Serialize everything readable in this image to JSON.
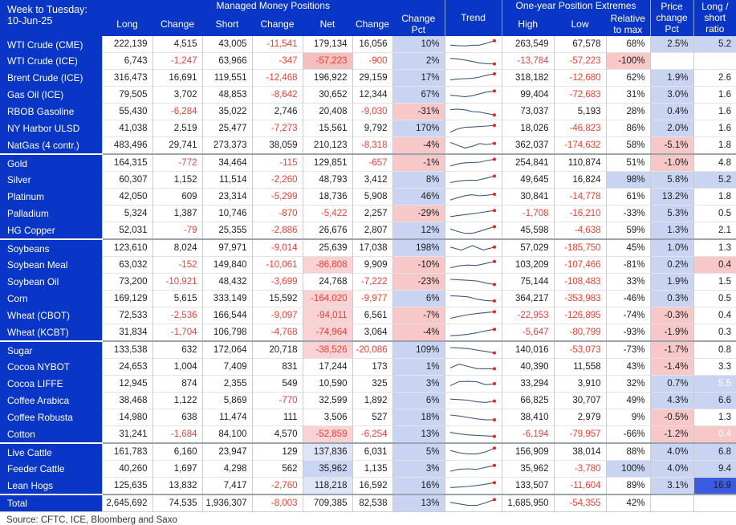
{
  "header": {
    "week_label": "Week to Tuesday:",
    "week_date": "10-Jun-25",
    "group_managed": "Managed Money Positions",
    "group_extremes": "One-year Position Extremes",
    "col_long": "Long",
    "col_change_1": "Change",
    "col_short": "Short",
    "col_change_2": "Change",
    "col_net": "Net",
    "col_change_3": "Change",
    "col_change_pct": "Change Pct",
    "col_trend": "Trend",
    "col_high": "High",
    "col_low": "Low",
    "col_relative_to_max": "Relative to max",
    "col_price_change_pct": "Price change Pct",
    "col_long_short_ratio": "Long / short ratio"
  },
  "source": "Source: CFTC, ICE, Bloomberg and Saxo",
  "colors": {
    "hdr": "#0a36c8",
    "cellBlue": "#c9d4f2",
    "cellPink": "#f8c7c7",
    "netPinkStrong": "#f5bfbf",
    "netPink": "#f9d3d3",
    "netBlue": "#dde5f7",
    "netBlueMid": "#c9d5f3",
    "ratioBlueStrong": "#3b5ce0",
    "red": "#e93f33",
    "dark": "#1d1d1f",
    "white": "#ffffff",
    "spark": "#3d5c80",
    "dot": "#e8231f"
  },
  "chart_data": {
    "type": "table",
    "columns": [
      "Long",
      "Change",
      "Short",
      "Change",
      "Net",
      "Change",
      "Change Pct",
      "Trend",
      "High",
      "Low",
      "Relative to max",
      "Price change Pct",
      "Long / short ratio"
    ],
    "cell_names": [
      "cell-long",
      "cell-long-change",
      "cell-short",
      "cell-short-change",
      "cell-net",
      "cell-net-change",
      "cell-change-pct",
      "cell-high",
      "cell-low",
      "cell-relative-to-max",
      "cell-price-change-pct",
      "cell-long-short-ratio"
    ],
    "rows": [
      {
        "label": "WTI Crude (CME)",
        "group": false,
        "trend": [
          0.6,
          0.66,
          0.68,
          0.62,
          0.6,
          0.38,
          0.15
        ],
        "cells": [
          "222,139",
          "4,515",
          "43,005",
          "-11,541",
          "179,134",
          "16,056",
          {
            "v": "10%",
            "bg": "cellBlue"
          },
          "263,549",
          "67,578",
          "68%",
          {
            "v": "2.5%",
            "bg": "cellBlue"
          },
          {
            "v": "5.2",
            "bg": "cellBlue"
          }
        ]
      },
      {
        "label": "WTI Crude (ICE)",
        "group": false,
        "trend": [
          0.22,
          0.28,
          0.4,
          0.55,
          0.7,
          0.78,
          0.8
        ],
        "cells": [
          "6,743",
          "-1,247",
          "63,966",
          "-347",
          {
            "v": "-57,223",
            "bg": "netPinkStrong"
          },
          "-900",
          {
            "v": "2%",
            "bg": "cellBlue"
          },
          "-13,784",
          "-57,223",
          {
            "v": "-100%",
            "bg": "cellPink",
            "fg": "d"
          },
          "",
          ""
        ]
      },
      {
        "label": "Brent Crude (ICE)",
        "group": false,
        "trend": [
          0.7,
          0.62,
          0.58,
          0.55,
          0.42,
          0.22,
          0.08
        ],
        "cells": [
          "316,473",
          "16,691",
          "119,551",
          "-12,468",
          "196,922",
          "29,159",
          {
            "v": "17%",
            "bg": "cellBlue"
          },
          "318,182",
          "-12,680",
          "62%",
          {
            "v": "1.9%",
            "bg": "cellBlue"
          },
          "2.6"
        ]
      },
      {
        "label": "Gas Oil (ICE)",
        "group": false,
        "trend": [
          0.55,
          0.62,
          0.72,
          0.6,
          0.4,
          0.22,
          0.12
        ],
        "cells": [
          "79,505",
          "3,702",
          "48,853",
          "-8,642",
          "30,652",
          "12,344",
          {
            "v": "67%",
            "bg": "cellBlue"
          },
          "99,404",
          "-72,683",
          "31%",
          {
            "v": "3.0%",
            "bg": "cellBlue"
          },
          "1.6"
        ]
      },
      {
        "label": "RBOB Gasoline",
        "group": false,
        "trend": [
          0.3,
          0.24,
          0.32,
          0.5,
          0.55,
          0.7,
          0.85
        ],
        "cells": [
          "55,430",
          "-6,284",
          "35,022",
          "2,746",
          "20,408",
          "-9,030",
          {
            "v": "-31%",
            "bg": "cellPink",
            "fg": "d"
          },
          "73,037",
          "5,193",
          "28%",
          {
            "v": "0.4%",
            "bg": "cellBlue"
          },
          "1.6"
        ]
      },
      {
        "label": "NY Harbor ULSD",
        "group": false,
        "trend": [
          0.88,
          0.55,
          0.38,
          0.35,
          0.3,
          0.25,
          0.18
        ],
        "cells": [
          "41,038",
          "2,519",
          "25,477",
          "-7,273",
          "15,561",
          "9,792",
          {
            "v": "170%",
            "bg": "cellBlue"
          },
          "18,026",
          "-46,823",
          "86%",
          {
            "v": "2.0%",
            "bg": "cellBlue"
          },
          "1.6"
        ]
      },
      {
        "label": "NatGas (4 contr.)",
        "group": false,
        "trend": [
          0.2,
          0.5,
          0.78,
          0.6,
          0.32,
          0.42,
          0.3
        ],
        "cells": [
          "483,496",
          "29,741",
          "273,373",
          "38,059",
          "210,123",
          "-8,318",
          {
            "v": "-4%",
            "bg": "cellPink",
            "fg": "d"
          },
          "362,037",
          "-174,632",
          "58%",
          {
            "v": "-5.1%",
            "bg": "cellPink",
            "fg": "d"
          },
          "1.8"
        ]
      },
      {
        "label": "Gold",
        "group": true,
        "trend": [
          0.82,
          0.6,
          0.48,
          0.45,
          0.42,
          0.25,
          0.12
        ],
        "cells": [
          "164,315",
          "-772",
          "34,464",
          "-115",
          "129,851",
          "-657",
          {
            "v": "-1%",
            "bg": "cellPink",
            "fg": "d"
          },
          "254,841",
          "110,874",
          "51%",
          {
            "v": "-1.0%",
            "bg": "cellPink",
            "fg": "d"
          },
          "4.8"
        ]
      },
      {
        "label": "Silver",
        "group": false,
        "trend": [
          0.78,
          0.62,
          0.55,
          0.55,
          0.35,
          0.12
        ],
        "cells": [
          "60,307",
          "1,152",
          "11,514",
          "-2,260",
          "48,793",
          "3,412",
          {
            "v": "8%",
            "bg": "cellBlue"
          },
          "49,645",
          "16,824",
          {
            "v": "98%",
            "bg": "cellBlue"
          },
          {
            "v": "5.8%",
            "bg": "cellBlue"
          },
          {
            "v": "5.2",
            "bg": "cellBlue"
          }
        ]
      },
      {
        "label": "Platinum",
        "group": false,
        "trend": [
          0.85,
          0.6,
          0.4,
          0.3,
          0.42,
          0.35,
          0.25
        ],
        "cells": [
          "42,050",
          "609",
          "23,314",
          "-5,299",
          "18,736",
          "5,908",
          {
            "v": "46%",
            "bg": "cellBlue"
          },
          "30,841",
          "-14,778",
          "61%",
          {
            "v": "13.2%",
            "bg": "cellBlue"
          },
          "1.8"
        ]
      },
      {
        "label": "Palladium",
        "group": false,
        "trend": [
          0.82,
          0.72,
          0.62,
          0.52,
          0.42,
          0.3,
          0.18
        ],
        "cells": [
          "5,324",
          "1,387",
          "10,746",
          "-870",
          "-5,422",
          "2,257",
          {
            "v": "-29%",
            "bg": "cellPink",
            "fg": "d"
          },
          "-1,708",
          "-16,210",
          {
            "v": "-33%",
            "fg": "d"
          },
          {
            "v": "5.3%",
            "bg": "cellBlue"
          },
          "0.5"
        ]
      },
      {
        "label": "HG Copper",
        "group": false,
        "trend": [
          0.35,
          0.62,
          0.8,
          0.8,
          0.6,
          0.35,
          0.12
        ],
        "cells": [
          "52,031",
          "-79",
          "25,355",
          "-2,886",
          "26,676",
          "2,807",
          {
            "v": "12%",
            "bg": "cellBlue"
          },
          "45,598",
          "-4,638",
          "59%",
          {
            "v": "1.3%",
            "bg": "cellBlue"
          },
          "2.1"
        ]
      },
      {
        "label": "Soybeans",
        "group": true,
        "trend": [
          0.4,
          0.72,
          0.25,
          0.7,
          0.4
        ],
        "cells": [
          "123,610",
          "8,024",
          "97,971",
          "-9,014",
          "25,639",
          "17,038",
          {
            "v": "198%",
            "bg": "cellBlue"
          },
          "57,029",
          "-185,750",
          "45%",
          {
            "v": "1.0%",
            "bg": "cellBlue"
          },
          "1.3"
        ]
      },
      {
        "label": "Soybean Meal",
        "group": false,
        "trend": [
          0.8,
          0.6,
          0.52,
          0.56,
          0.35,
          0.15
        ],
        "cells": [
          "63,032",
          "-152",
          "149,840",
          "-10,061",
          {
            "v": "-86,808",
            "bg": "netPink"
          },
          "9,909",
          {
            "v": "-10%",
            "bg": "cellPink",
            "fg": "d"
          },
          "103,209",
          "-107,466",
          {
            "v": "-81%",
            "fg": "d"
          },
          {
            "v": "0.2%",
            "bg": "cellBlue"
          },
          {
            "v": "0.4",
            "bg": "cellPink",
            "fg": "d"
          }
        ]
      },
      {
        "label": "Soybean Oil",
        "group": false,
        "trend": [
          0.25,
          0.3,
          0.35,
          0.42,
          0.62,
          0.78
        ],
        "cells": [
          "73,200",
          "-10,921",
          "48,432",
          "-3,699",
          "24,768",
          "-7,222",
          {
            "v": "-23%",
            "bg": "cellPink",
            "fg": "d"
          },
          "75,144",
          "-108,483",
          "33%",
          {
            "v": "1.9%",
            "bg": "cellBlue"
          },
          "1.5"
        ]
      },
      {
        "label": "Corn",
        "group": false,
        "trend": [
          0.2,
          0.24,
          0.32,
          0.55,
          0.7,
          0.74
        ],
        "cells": [
          "169,129",
          "5,615",
          "333,149",
          "15,592",
          {
            "v": "-164,020",
            "bg": "netPink"
          },
          "-9,977",
          {
            "v": "6%",
            "bg": "cellBlue"
          },
          "364,217",
          "-353,983",
          {
            "v": "-46%",
            "fg": "d"
          },
          {
            "v": "0.3%",
            "bg": "cellBlue"
          },
          "0.5"
        ]
      },
      {
        "label": "Wheat (CBOT)",
        "group": false,
        "trend": [
          0.8,
          0.6,
          0.42,
          0.3,
          0.2,
          0.12
        ],
        "cells": [
          "72,533",
          "-2,536",
          "166,544",
          "-9,097",
          {
            "v": "-94,011",
            "bg": "netPink"
          },
          "6,561",
          {
            "v": "-7%",
            "bg": "cellPink",
            "fg": "d"
          },
          "-22,953",
          "-126,895",
          {
            "v": "-74%",
            "fg": "d"
          },
          {
            "v": "-0.3%",
            "bg": "cellPink",
            "fg": "d"
          },
          "0.4"
        ]
      },
      {
        "label": "Wheat (KCBT)",
        "group": false,
        "trend": [
          0.85,
          0.8,
          0.7,
          0.55,
          0.35,
          0.18
        ],
        "cells": [
          "31,834",
          "-1,704",
          "106,798",
          "-4,768",
          {
            "v": "-74,964",
            "bg": "netPink"
          },
          "3,064",
          {
            "v": "-4%",
            "bg": "cellPink",
            "fg": "d"
          },
          "-5,647",
          "-80,799",
          {
            "v": "-93%",
            "fg": "d"
          },
          {
            "v": "-1.9%",
            "bg": "cellPink",
            "fg": "d"
          },
          "0.3"
        ]
      },
      {
        "label": "Sugar",
        "group": true,
        "trend": [
          0.25,
          0.28,
          0.36,
          0.5,
          0.65,
          0.8
        ],
        "cells": [
          "133,538",
          "632",
          "172,064",
          "20,718",
          {
            "v": "-38,526",
            "bg": "netPink"
          },
          "-20,086",
          {
            "v": "109%",
            "bg": "cellBlue"
          },
          "140,016",
          "-53,073",
          {
            "v": "-73%",
            "fg": "d"
          },
          {
            "v": "-1.7%",
            "bg": "cellPink",
            "fg": "d"
          },
          "0.8"
        ]
      },
      {
        "label": "Cocoa NYBOT",
        "group": false,
        "trend": [
          0.6,
          0.22,
          0.45,
          0.68,
          0.7,
          0.7
        ],
        "cells": [
          "24,653",
          "1,004",
          "7,409",
          "831",
          "17,244",
          "173",
          {
            "v": "1%",
            "bg": "cellBlue"
          },
          "40,390",
          "11,558",
          "43%",
          {
            "v": "-1.4%",
            "bg": "cellPink",
            "fg": "d"
          },
          "3.3"
        ]
      },
      {
        "label": "Cocoa LIFFE",
        "group": false,
        "trend": [
          0.7,
          0.28,
          0.26,
          0.3,
          0.6,
          0.5
        ],
        "cells": [
          "12,945",
          "874",
          "2,355",
          "549",
          "10,590",
          "325",
          {
            "v": "3%",
            "bg": "cellBlue"
          },
          "33,294",
          "3,910",
          "32%",
          {
            "v": "0.7%",
            "bg": "cellBlue"
          },
          {
            "v": "5.5",
            "bg": "cellBlue",
            "fg": "w"
          }
        ]
      },
      {
        "label": "Coffee Arabica",
        "group": false,
        "trend": [
          0.35,
          0.4,
          0.46,
          0.62,
          0.7,
          0.55
        ],
        "cells": [
          "38,468",
          "1,122",
          "5,869",
          "-770",
          "32,599",
          "1,892",
          {
            "v": "6%",
            "bg": "cellBlue"
          },
          "66,825",
          "30,707",
          "49%",
          {
            "v": "4.3%",
            "bg": "cellBlue"
          },
          {
            "v": "6.6",
            "bg": "cellBlue"
          }
        ]
      },
      {
        "label": "Coffee Robusta",
        "group": false,
        "trend": [
          0.25,
          0.35,
          0.5,
          0.65,
          0.74,
          0.75
        ],
        "cells": [
          "14,980",
          "638",
          "11,474",
          "111",
          "3,506",
          "527",
          {
            "v": "18%",
            "bg": "cellBlue"
          },
          "38,410",
          "2,979",
          "9%",
          {
            "v": "-0.5%",
            "bg": "cellPink",
            "fg": "d"
          },
          "1.3"
        ]
      },
      {
        "label": "Cotton",
        "group": false,
        "trend": [
          0.3,
          0.45,
          0.56,
          0.62,
          0.66,
          0.72
        ],
        "cells": [
          "31,241",
          "-1,684",
          "84,100",
          "4,570",
          {
            "v": "-52,859",
            "bg": "netPink"
          },
          "-6,254",
          {
            "v": "13%",
            "bg": "cellBlue"
          },
          "-6,194",
          "-79,957",
          {
            "v": "-66%",
            "fg": "d"
          },
          {
            "v": "-1.2%",
            "bg": "cellPink",
            "fg": "d"
          },
          {
            "v": "0.4",
            "bg": "cellPink",
            "fg": "w"
          }
        ]
      },
      {
        "label": "Live Cattle",
        "group": true,
        "trend": [
          0.35,
          0.58,
          0.7,
          0.7,
          0.5,
          0.1
        ],
        "cells": [
          "161,783",
          "6,160",
          "23,947",
          "129",
          {
            "v": "137,836",
            "bg": "netBlue"
          },
          "6,031",
          {
            "v": "5%",
            "bg": "cellBlue"
          },
          "156,909",
          "38,014",
          "88%",
          {
            "v": "4.0%",
            "bg": "cellBlue"
          },
          {
            "v": "6.8",
            "bg": "cellBlue"
          }
        ]
      },
      {
        "label": "Feeder Cattle",
        "group": false,
        "trend": [
          0.75,
          0.55,
          0.5,
          0.55,
          0.35,
          0.15
        ],
        "cells": [
          "40,260",
          "1,697",
          "4,298",
          "562",
          {
            "v": "35,962",
            "bg": "netBlueMid"
          },
          "1,135",
          {
            "v": "3%",
            "bg": "cellBlue"
          },
          "35,962",
          "-3,780",
          {
            "v": "100%",
            "bg": "cellBlue"
          },
          {
            "v": "4.0%",
            "bg": "cellBlue"
          },
          {
            "v": "9.4",
            "bg": "cellBlue"
          }
        ]
      },
      {
        "label": "Lean Hogs",
        "group": false,
        "trend": [
          0.7,
          0.64,
          0.58,
          0.48,
          0.35,
          0.18
        ],
        "cells": [
          "125,635",
          "13,832",
          "7,417",
          "-2,760",
          {
            "v": "118,218",
            "bg": "netBlue"
          },
          "16,592",
          {
            "v": "16%",
            "bg": "cellBlue"
          },
          "133,507",
          "-11,604",
          "89%",
          {
            "v": "3.1%",
            "bg": "cellBlue"
          },
          {
            "v": "16.9",
            "bg": "ratioBlueStrong",
            "fg": "d"
          }
        ]
      },
      {
        "label": "Total",
        "group": true,
        "trend": [
          0.4,
          0.56,
          0.7,
          0.72,
          0.45,
          0.12
        ],
        "cells": [
          "2,645,692",
          "74,535",
          "1,936,307",
          "-8,003",
          "709,385",
          "82,538",
          {
            "v": "13%",
            "bg": "cellBlue"
          },
          "1,685,950",
          "-54,355",
          "42%",
          "",
          ""
        ]
      }
    ]
  }
}
